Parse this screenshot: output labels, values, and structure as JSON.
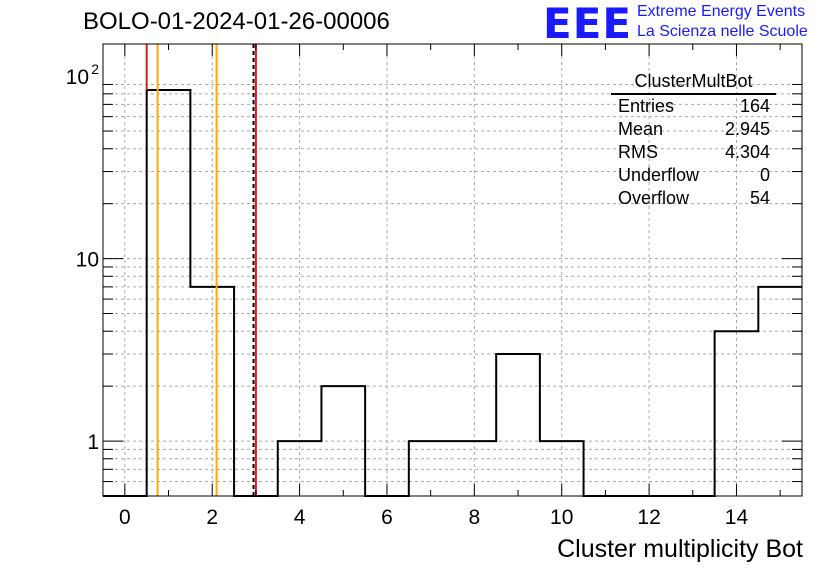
{
  "title": "BOLO-01-2024-01-26-00006",
  "logo": {
    "text": "EEE",
    "line1": "Extreme Energy Events",
    "line2": "La Scienza nelle Scuole",
    "color": "#1a1aff"
  },
  "stats": {
    "name": "ClusterMultBot",
    "rows": [
      {
        "label": "Entries",
        "value": "164"
      },
      {
        "label": "Mean",
        "value": "2.945"
      },
      {
        "label": "RMS",
        "value": "4.304"
      },
      {
        "label": "Underflow",
        "value": "0"
      },
      {
        "label": "Overflow",
        "value": "54"
      }
    ]
  },
  "chart_data": {
    "type": "histogram",
    "xlabel": "Cluster multiplicity Bot",
    "ylabel": "",
    "x_range": [
      -0.5,
      15.5
    ],
    "y_range": [
      0.5,
      150
    ],
    "y_scale": "log",
    "grid": true,
    "bin_edges": [
      -0.5,
      0.5,
      1.5,
      2.5,
      3.5,
      4.5,
      5.5,
      6.5,
      7.5,
      8.5,
      9.5,
      10.5,
      11.5,
      12.5,
      13.5,
      14.5,
      15.5
    ],
    "counts": [
      0,
      84,
      7,
      0,
      1,
      2,
      0,
      1,
      1,
      3,
      1,
      0,
      0,
      0,
      4,
      7
    ],
    "x_ticks": [
      0,
      2,
      4,
      6,
      8,
      10,
      12,
      14
    ],
    "y_tick_labels": [
      {
        "value": 1,
        "label": "1"
      },
      {
        "value": 10,
        "label": "10"
      },
      {
        "value": 100,
        "label": "10",
        "exp": "2"
      }
    ],
    "vertical_lines": [
      {
        "x": 0.5,
        "color": "#e8171f",
        "style": "solid",
        "top": 150,
        "bottom": 84
      },
      {
        "x": 0.75,
        "color": "#ffaa00",
        "style": "solid"
      },
      {
        "x": 2.1,
        "color": "#ffaa00",
        "style": "solid"
      },
      {
        "x": 2.945,
        "color": "#000000",
        "style": "dashed"
      },
      {
        "x": 3.0,
        "color": "#e8171f",
        "style": "solid"
      }
    ]
  }
}
